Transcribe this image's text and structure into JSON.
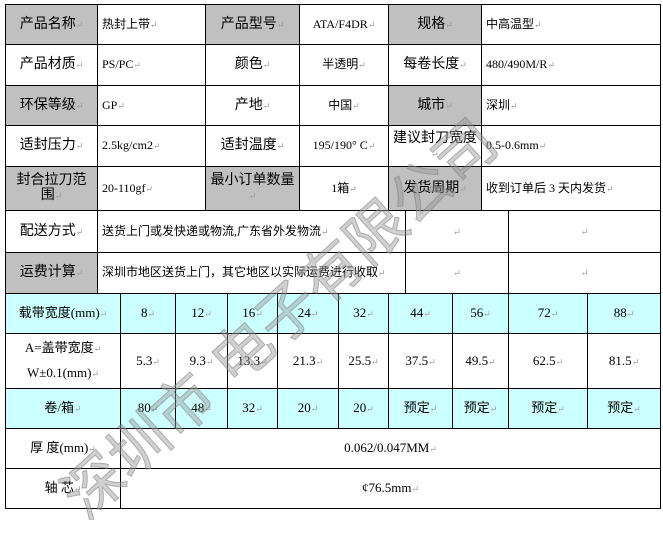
{
  "rows": [
    [
      {
        "t": "产品名称",
        "g": 1
      },
      {
        "t": "热封上带"
      },
      {
        "t": "产品型号",
        "g": 1
      },
      {
        "t": "ATA/F4DR"
      },
      {
        "t": "规格",
        "g": 1
      },
      {
        "t": "中高温型"
      }
    ],
    [
      {
        "t": "产品材质"
      },
      {
        "t": "PS/PC"
      },
      {
        "t": "颜色"
      },
      {
        "t": "半透明"
      },
      {
        "t": "每卷长度"
      },
      {
        "t": "480/490M/R"
      }
    ],
    [
      {
        "t": "环保等级",
        "g": 1
      },
      {
        "t": "GP"
      },
      {
        "t": "产地"
      },
      {
        "t": "中国"
      },
      {
        "t": "城市",
        "g": 1
      },
      {
        "t": "深圳"
      }
    ],
    [
      {
        "t": "适封压力"
      },
      {
        "t": "2.5kg/cm2"
      },
      {
        "t": "适封温度"
      },
      {
        "t": "195/190° C"
      },
      {
        "t": "建议封刀宽度"
      },
      {
        "t": "0.5-0.6mm"
      }
    ],
    [
      {
        "t": "封合拉刀范围",
        "g": 1
      },
      {
        "t": "20-110gf"
      },
      {
        "t": "最小订单数量",
        "g": 1
      },
      {
        "t": "1箱"
      },
      {
        "t": "发货周期",
        "g": 1
      },
      {
        "t": "收到订单后 3 天内发货"
      }
    ]
  ],
  "delivery": {
    "label": "配送方式",
    "value": "送货上门或发快递或物流,广东省外发物流"
  },
  "freight": {
    "label": "运费计算",
    "value": "深圳市地区送货上门，其它地区以实际运费进行收取"
  },
  "spec": {
    "width_label": "载带宽度(mm)",
    "widths": [
      "8",
      "12",
      "16",
      "24",
      "32",
      "44",
      "56",
      "72",
      "88"
    ],
    "cover_label_1": "A=盖带宽度",
    "cover_label_2": "W±0.1(mm)",
    "covers": [
      "5.3",
      "9.3",
      "13.3",
      "21.3",
      "25.5",
      "37.5",
      "49.5",
      "62.5",
      "81.5"
    ],
    "rolls_label": "卷/箱",
    "rolls": [
      "80",
      "48",
      "32",
      "20",
      "20",
      "预定",
      "预定",
      "预定",
      "预定"
    ],
    "thickness_label": "厚 度(mm)",
    "thickness": "0.062/0.047MM",
    "core_label": "轴 芯",
    "core": "¢76.5mm"
  },
  "colors": {
    "gray": "#c0c0c0",
    "cyan": "#ccffff"
  },
  "watermark": "深圳市 电子有限公司"
}
